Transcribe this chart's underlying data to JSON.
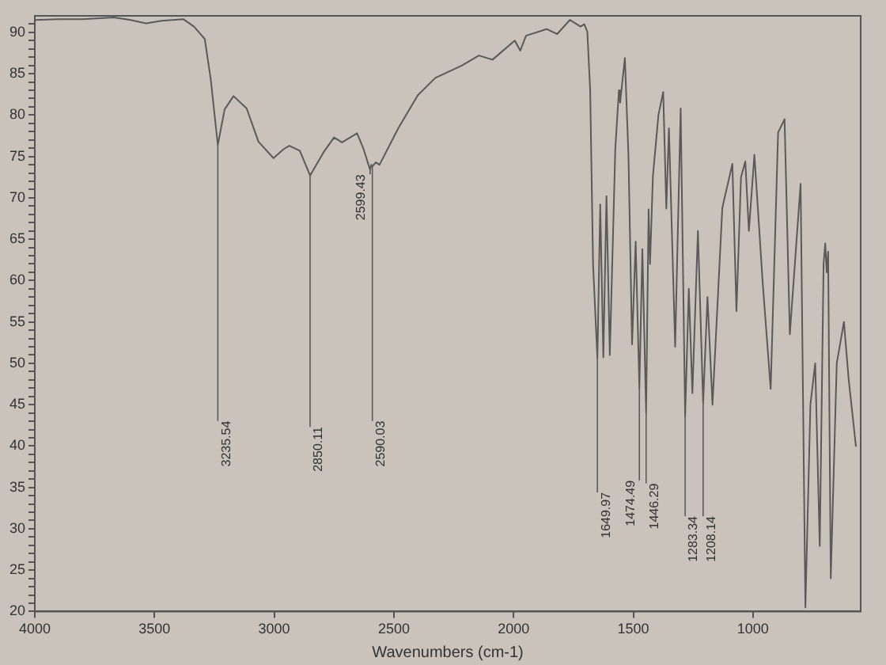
{
  "chart_data": {
    "type": "line",
    "xlabel": "Wavenumbers (cm-1)",
    "color": "#5a5a5a",
    "xlim": [
      4000,
      550
    ],
    "xticks": [
      4000,
      3500,
      3000,
      2500,
      2000,
      1500,
      1000
    ],
    "ylim": [
      20,
      92
    ],
    "yticks": [
      20,
      {
        "value": 21,
        "label": null
      },
      {
        "value": 22,
        "label": null
      },
      {
        "value": 23,
        "label": null
      },
      {
        "value": 24,
        "label": null
      },
      25,
      {
        "value": 26,
        "label": null
      },
      {
        "value": 27,
        "label": null
      },
      {
        "value": 28,
        "label": null
      },
      {
        "value": 29,
        "label": null
      },
      30,
      {
        "value": 31,
        "label": null
      },
      {
        "value": 32,
        "label": null
      },
      {
        "value": 33,
        "label": null
      },
      {
        "value": 34,
        "label": null
      },
      35,
      {
        "value": 36,
        "label": null
      },
      {
        "value": 37,
        "label": null
      },
      {
        "value": 38,
        "label": null
      },
      {
        "value": 39,
        "label": null
      },
      40,
      {
        "value": 41,
        "label": null
      },
      {
        "value": 42,
        "label": null
      },
      {
        "value": 43,
        "label": null
      },
      {
        "value": 44,
        "label": null
      },
      45,
      {
        "value": 46,
        "label": null
      },
      {
        "value": 47,
        "label": null
      },
      {
        "value": 48,
        "label": null
      },
      {
        "value": 49,
        "label": null
      },
      50,
      {
        "value": 51,
        "label": null
      },
      {
        "value": 52,
        "label": null
      },
      {
        "value": 53,
        "label": null
      },
      {
        "value": 54,
        "label": null
      },
      55,
      {
        "value": 56,
        "label": null
      },
      {
        "value": 57,
        "label": null
      },
      {
        "value": 58,
        "label": null
      },
      {
        "value": 59,
        "label": null
      },
      60,
      {
        "value": 61,
        "label": null
      },
      {
        "value": 62,
        "label": null
      },
      {
        "value": 63,
        "label": null
      },
      {
        "value": 64,
        "label": null
      },
      65,
      {
        "value": 66,
        "label": null
      },
      {
        "value": 67,
        "label": null
      },
      {
        "value": 68,
        "label": null
      },
      {
        "value": 69,
        "label": null
      },
      70,
      {
        "value": 71,
        "label": null
      },
      {
        "value": 72,
        "label": null
      },
      {
        "value": 73,
        "label": null
      },
      {
        "value": 74,
        "label": null
      },
      75,
      {
        "value": 76,
        "label": null
      },
      {
        "value": 77,
        "label": null
      },
      {
        "value": 78,
        "label": null
      },
      {
        "value": 79,
        "label": null
      },
      80,
      {
        "value": 81,
        "label": null
      },
      {
        "value": 82,
        "label": null
      },
      {
        "value": 83,
        "label": null
      },
      {
        "value": 84,
        "label": null
      },
      85,
      {
        "value": 86,
        "label": null
      },
      {
        "value": 87,
        "label": null
      },
      {
        "value": 88,
        "label": null
      },
      {
        "value": 89,
        "label": null
      },
      90,
      {
        "value": 91,
        "label": null
      }
    ],
    "x": [
      4000,
      3900,
      3800,
      3670,
      3600,
      3535,
      3470,
      3380,
      3335,
      3290,
      3265,
      3235.54,
      3207,
      3170,
      3115,
      3066,
      3003,
      2960,
      2937,
      2893,
      2850.11,
      2794,
      2750,
      2717,
      2654,
      2628,
      2599.43,
      2594,
      2590.03,
      2575,
      2560,
      2480,
      2400,
      2327,
      2215,
      2145,
      2088,
      1995,
      1972,
      1948,
      1862,
      1818,
      1765,
      1720,
      1705,
      1692,
      1680,
      1668,
      1649.97,
      1638,
      1625,
      1612,
      1598,
      1575,
      1560,
      1555,
      1535,
      1520,
      1505,
      1490,
      1474.49,
      1462,
      1446.29,
      1436,
      1430,
      1418,
      1395,
      1375,
      1362,
      1351,
      1325,
      1302,
      1283.34,
      1268,
      1253,
      1230,
      1208.14,
      1190,
      1169,
      1128,
      1086,
      1069,
      1050,
      1032,
      1017,
      994,
      960,
      926,
      895,
      868,
      846,
      801,
      781,
      760,
      740,
      721,
      705,
      698,
      692,
      686,
      675,
      650,
      620,
      600,
      570
    ],
    "values": [
      91.5,
      91.6,
      91.6,
      91.8,
      91.5,
      91.1,
      91.4,
      91.6,
      90.7,
      89.2,
      84.3,
      76.4,
      80.7,
      82.3,
      80.8,
      76.8,
      74.8,
      75.9,
      76.3,
      75.7,
      72.7,
      75.5,
      77.3,
      76.7,
      77.8,
      76.0,
      73.4,
      74.0,
      73.8,
      74.3,
      74.0,
      78.5,
      82.4,
      84.5,
      86.0,
      87.2,
      86.7,
      89.0,
      87.8,
      89.6,
      90.4,
      89.8,
      91.5,
      90.7,
      91.0,
      90.1,
      83.0,
      62.0,
      50.6,
      69.2,
      50.7,
      70.2,
      51.0,
      76.0,
      83.0,
      81.5,
      86.9,
      75.0,
      52.3,
      64.7,
      47.0,
      63.8,
      44.0,
      68.6,
      62.0,
      72.6,
      80.0,
      82.8,
      68.7,
      78.4,
      52.0,
      80.8,
      43.6,
      59.0,
      46.4,
      66.0,
      45.2,
      58.0,
      45.0,
      68.8,
      74.1,
      56.3,
      72.5,
      74.4,
      66.0,
      75.2,
      60.0,
      46.9,
      77.9,
      79.5,
      53.5,
      71.7,
      20.5,
      45.0,
      50.0,
      27.9,
      62.0,
      64.5,
      61.0,
      63.5,
      24.0,
      50.0,
      55.0,
      48.0,
      40.0
    ],
    "annotations": [
      {
        "text": "3235.54",
        "x": 3235.54,
        "y": 76.4
      },
      {
        "text": "2850.11",
        "x": 2850.11,
        "y": 72.7
      },
      {
        "text": "2599.43",
        "x": 2599.43,
        "y": 73.4
      },
      {
        "text": "2590.03",
        "x": 2590.03,
        "y": 73.8
      },
      {
        "text": "1649.97",
        "x": 1649.97,
        "y": 50.6
      },
      {
        "text": "1474.49",
        "x": 1474.49,
        "y": 47.0
      },
      {
        "text": "1446.29",
        "x": 1446.29,
        "y": 44.0
      },
      {
        "text": "1283.34",
        "x": 1283.34,
        "y": 43.6
      },
      {
        "text": "1208.14",
        "x": 1208.14,
        "y": 45.2
      }
    ]
  }
}
